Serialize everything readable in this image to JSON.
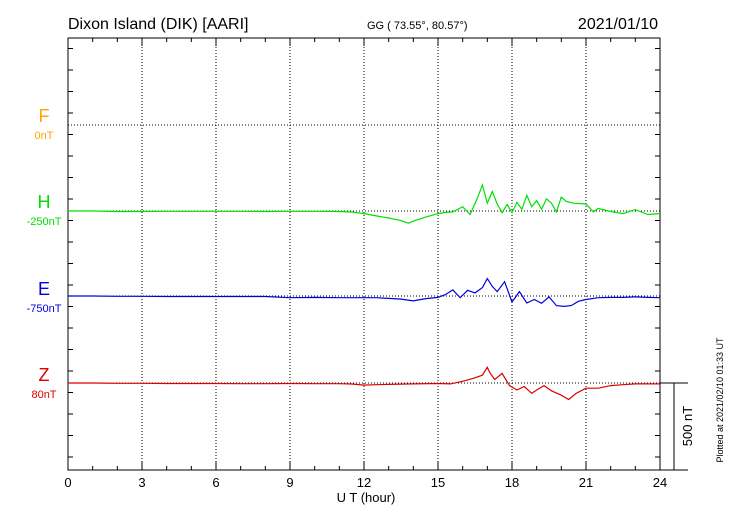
{
  "header": {
    "station": "Dixon Island (DIK)  [AARI]",
    "coords": "GG ( 73.55°,  80.57°)",
    "date": "2021/01/10"
  },
  "side_note": "Plotted at 2021/02/10 01:33 UT",
  "scale_label": "500 nT",
  "chart_data": {
    "type": "line",
    "xlabel": "U T (hour)",
    "xlim": [
      0,
      24
    ],
    "xticks": [
      "0",
      "3",
      "6",
      "9",
      "12",
      "15",
      "18",
      "21",
      "24"
    ],
    "components": [
      {
        "name": "F",
        "baseline_label": "0nT",
        "color": "#ffa500",
        "values": []
      },
      {
        "name": "H",
        "baseline_label": "-250nT",
        "color": "#00e000",
        "values": [
          [
            0,
            0
          ],
          [
            1,
            0
          ],
          [
            2,
            -3
          ],
          [
            3,
            -3
          ],
          [
            4,
            -2
          ],
          [
            5,
            -2
          ],
          [
            6,
            -2
          ],
          [
            7,
            -2
          ],
          [
            8,
            -3
          ],
          [
            9,
            -2
          ],
          [
            10,
            -2
          ],
          [
            11,
            -3
          ],
          [
            11.5,
            -6
          ],
          [
            12,
            -15
          ],
          [
            12.5,
            -28
          ],
          [
            13,
            -40
          ],
          [
            13.5,
            -55
          ],
          [
            13.8,
            -70
          ],
          [
            14,
            -58
          ],
          [
            14.5,
            -35
          ],
          [
            15,
            -15
          ],
          [
            15.3,
            -8
          ],
          [
            15.6,
            -5
          ],
          [
            16,
            25
          ],
          [
            16.3,
            -20
          ],
          [
            16.6,
            75
          ],
          [
            16.8,
            150
          ],
          [
            17,
            45
          ],
          [
            17.2,
            112
          ],
          [
            17.4,
            40
          ],
          [
            17.6,
            -10
          ],
          [
            17.8,
            38
          ],
          [
            18,
            -10
          ],
          [
            18.2,
            50
          ],
          [
            18.4,
            10
          ],
          [
            18.6,
            90
          ],
          [
            18.8,
            25
          ],
          [
            19,
            60
          ],
          [
            19.2,
            10
          ],
          [
            19.4,
            70
          ],
          [
            19.6,
            45
          ],
          [
            19.8,
            -5
          ],
          [
            20,
            80
          ],
          [
            20.2,
            55
          ],
          [
            20.5,
            45
          ],
          [
            21,
            40
          ],
          [
            21.3,
            -5
          ],
          [
            21.5,
            15
          ],
          [
            22,
            -3
          ],
          [
            22.5,
            -15
          ],
          [
            23,
            8
          ],
          [
            23.5,
            -20
          ],
          [
            24,
            -15
          ]
        ]
      },
      {
        "name": "E",
        "baseline_label": "-750nT",
        "color": "#0000dd",
        "values": [
          [
            0,
            0
          ],
          [
            1,
            0
          ],
          [
            2,
            -2
          ],
          [
            3,
            -2
          ],
          [
            4,
            -3
          ],
          [
            5,
            -3
          ],
          [
            6,
            -3
          ],
          [
            7,
            -3
          ],
          [
            8,
            -3
          ],
          [
            9,
            -10
          ],
          [
            10,
            -8
          ],
          [
            11,
            -10
          ],
          [
            12,
            -10
          ],
          [
            12.5,
            -10
          ],
          [
            13,
            -14
          ],
          [
            13.5,
            -18
          ],
          [
            14,
            -28
          ],
          [
            14.5,
            -15
          ],
          [
            15,
            -8
          ],
          [
            15.3,
            8
          ],
          [
            15.6,
            35
          ],
          [
            15.9,
            -10
          ],
          [
            16.2,
            33
          ],
          [
            16.5,
            18
          ],
          [
            16.8,
            48
          ],
          [
            17,
            100
          ],
          [
            17.2,
            55
          ],
          [
            17.4,
            25
          ],
          [
            17.7,
            82
          ],
          [
            18,
            -35
          ],
          [
            18.3,
            25
          ],
          [
            18.6,
            -40
          ],
          [
            18.9,
            -20
          ],
          [
            19.2,
            -42
          ],
          [
            19.5,
            -5
          ],
          [
            19.8,
            -55
          ],
          [
            20.1,
            -60
          ],
          [
            20.4,
            -55
          ],
          [
            20.7,
            -30
          ],
          [
            21,
            -20
          ],
          [
            21.5,
            -10
          ],
          [
            22,
            -8
          ],
          [
            22.5,
            -8
          ],
          [
            23,
            -5
          ],
          [
            23.5,
            -8
          ],
          [
            24,
            -10
          ]
        ]
      },
      {
        "name": "Z",
        "baseline_label": "80nT",
        "color": "#dd0000",
        "values": [
          [
            0,
            0
          ],
          [
            1,
            0
          ],
          [
            2,
            -2
          ],
          [
            3,
            -2
          ],
          [
            4,
            -3
          ],
          [
            5,
            -3
          ],
          [
            6,
            -3
          ],
          [
            7,
            -4
          ],
          [
            8,
            -4
          ],
          [
            9,
            -3
          ],
          [
            10,
            -4
          ],
          [
            11,
            -4
          ],
          [
            11.5,
            -6
          ],
          [
            12,
            -12
          ],
          [
            12.5,
            -10
          ],
          [
            13,
            -8
          ],
          [
            14,
            -5
          ],
          [
            15,
            -3
          ],
          [
            15.5,
            -5
          ],
          [
            16,
            10
          ],
          [
            16.4,
            25
          ],
          [
            16.8,
            45
          ],
          [
            17,
            90
          ],
          [
            17.1,
            60
          ],
          [
            17.3,
            20
          ],
          [
            17.6,
            55
          ],
          [
            17.9,
            -15
          ],
          [
            18.2,
            -40
          ],
          [
            18.5,
            -20
          ],
          [
            18.8,
            -60
          ],
          [
            19,
            -40
          ],
          [
            19.3,
            -15
          ],
          [
            19.6,
            -45
          ],
          [
            20,
            -70
          ],
          [
            20.3,
            -95
          ],
          [
            20.6,
            -60
          ],
          [
            21,
            -30
          ],
          [
            21.5,
            -30
          ],
          [
            22,
            -15
          ],
          [
            22.5,
            -10
          ],
          [
            23,
            -5
          ],
          [
            23.5,
            -5
          ],
          [
            24,
            -5
          ]
        ]
      }
    ]
  }
}
